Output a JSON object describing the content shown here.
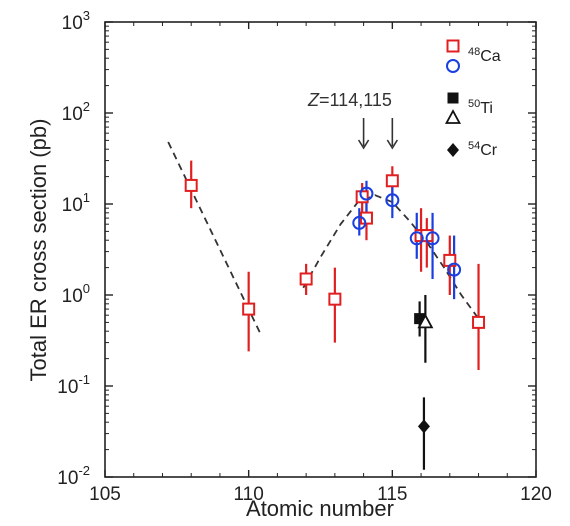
{
  "chart_data": {
    "type": "scatter",
    "xlabel": "Atomic number",
    "ylabel": "Total ER cross section  (pb)",
    "xlim": [
      105,
      120
    ],
    "ylim_log10": [
      -2,
      3
    ],
    "yscale": "log",
    "x_ticks": [
      {
        "value": 105,
        "label": "105"
      },
      {
        "value": 110,
        "label": "110"
      },
      {
        "value": 115,
        "label": "115"
      },
      {
        "value": 120,
        "label": "120"
      }
    ],
    "y_ticks": [
      {
        "exp": -2,
        "base": "10",
        "sup": "-2"
      },
      {
        "exp": -1,
        "base": "10",
        "sup": "-1"
      },
      {
        "exp": 0,
        "base": "10",
        "sup": "0"
      },
      {
        "exp": 1,
        "base": "10",
        "sup": "1"
      },
      {
        "exp": 2,
        "base": "10",
        "sup": "2"
      },
      {
        "exp": 3,
        "base": "10",
        "sup": "3"
      }
    ],
    "legend": {
      "placement": "top-right",
      "entries": [
        {
          "mass": "48",
          "element": "Ca",
          "markers": [
            "open-square-red",
            "open-circle-blue"
          ]
        },
        {
          "mass": "50",
          "element": "Ti",
          "markers": [
            "filled-square-black",
            "open-triangle-black"
          ]
        },
        {
          "mass": "54",
          "element": "Cr",
          "markers": [
            "filled-diamond-black"
          ]
        }
      ]
    },
    "annotation": {
      "italic_part": "Z",
      "text_part": "=114,115",
      "arrows_at_x": [
        114,
        115
      ]
    },
    "series": [
      {
        "marker": "open-square",
        "color": "#e02020",
        "points": [
          {
            "x": 108,
            "y": 16,
            "ylo": 9,
            "yhi": 30
          },
          {
            "x": 110,
            "y": 0.7,
            "ylo": 0.24,
            "yhi": 1.8
          },
          {
            "x": 112,
            "y": 1.5,
            "ylo": 1.0,
            "yhi": 2.2
          },
          {
            "x": 113,
            "y": 0.9,
            "ylo": 0.3,
            "yhi": 2.0
          },
          {
            "x": 113.95,
            "y": 12,
            "ylo": 7,
            "yhi": 17
          },
          {
            "x": 114.1,
            "y": 7,
            "ylo": 4,
            "yhi": 11
          },
          {
            "x": 115,
            "y": 18,
            "ylo": 12,
            "yhi": 26
          },
          {
            "x": 116,
            "y": 4.5,
            "ylo": 1.8,
            "yhi": 9
          },
          {
            "x": 116.2,
            "y": 4.5,
            "ylo": 2.0,
            "yhi": 7
          },
          {
            "x": 117,
            "y": 2.4,
            "ylo": 1.0,
            "yhi": 4.5
          },
          {
            "x": 118,
            "y": 0.5,
            "ylo": 0.15,
            "yhi": 2.2
          }
        ]
      },
      {
        "marker": "open-circle",
        "color": "#1a3fe0",
        "points": [
          {
            "x": 113.85,
            "y": 6.2,
            "ylo": 4.5,
            "yhi": 9
          },
          {
            "x": 114.1,
            "y": 13,
            "ylo": 8,
            "yhi": 18
          },
          {
            "x": 115,
            "y": 11,
            "ylo": 7,
            "yhi": 17
          },
          {
            "x": 115.85,
            "y": 4.2,
            "ylo": 2.5,
            "yhi": 8
          },
          {
            "x": 116.4,
            "y": 4.2,
            "ylo": 1.5,
            "yhi": 8
          },
          {
            "x": 117.15,
            "y": 1.9,
            "ylo": 0.9,
            "yhi": 4.5
          }
        ]
      },
      {
        "marker": "filled-square",
        "color": "#111111",
        "points": [
          {
            "x": 115.95,
            "y": 0.55,
            "ylo": 0.35,
            "yhi": 0.85
          }
        ]
      },
      {
        "marker": "open-triangle",
        "color": "#111111",
        "points": [
          {
            "x": 116.15,
            "y": 0.5,
            "ylo": 0.18,
            "yhi": 1.0
          }
        ]
      },
      {
        "marker": "filled-diamond",
        "color": "#111111",
        "points": [
          {
            "x": 116.1,
            "y": 0.036,
            "ylo": 0.012,
            "yhi": 0.075
          }
        ]
      }
    ],
    "fit_curves": [
      {
        "style": "dashed",
        "color": "#333333",
        "points": [
          [
            107.2,
            48
          ],
          [
            110.4,
            0.38
          ]
        ]
      },
      {
        "style": "dashed",
        "color": "#333333",
        "points": [
          [
            111.9,
            1.2
          ],
          [
            112.5,
            2.6
          ],
          [
            113.2,
            6
          ],
          [
            113.8,
            10.5
          ],
          [
            114.4,
            12.5
          ],
          [
            115.0,
            10.5
          ],
          [
            115.6,
            6.5
          ],
          [
            116.2,
            3.8
          ],
          [
            116.8,
            2.0
          ],
          [
            117.4,
            1.0
          ],
          [
            118.0,
            0.55
          ]
        ]
      }
    ]
  }
}
